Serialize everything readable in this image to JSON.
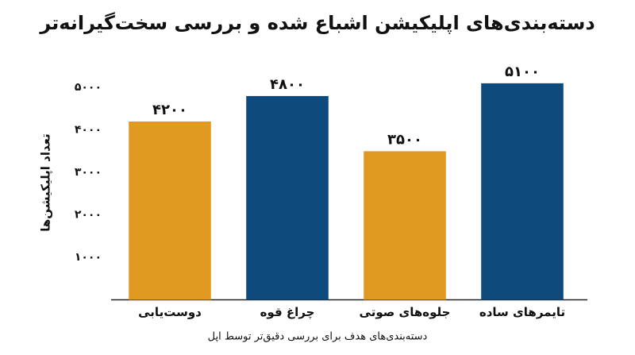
{
  "chart_data": {
    "type": "bar",
    "title": "دسته‌بندی‌های اپلیکیشن اشباع شده و بررسی سخت‌گیرانه‌تر",
    "x_label": "دسته‌بندی‌های هدف برای بررسی دقیق‌تر توسط اپل",
    "y_label": "تعداد اپلیکیشن‌ها",
    "categories": [
      "دوست‌یابی",
      "چراغ قوه",
      "جلوه‌های صوتی",
      "تایمرهای ساده"
    ],
    "values": [
      4200,
      4800,
      3500,
      5100
    ],
    "value_labels": [
      "۴۲۰۰",
      "۴۸۰۰",
      "۳۵۰۰",
      "۵۱۰۰"
    ],
    "colors": [
      "#e09a22",
      "#0f4a7c",
      "#e09a22",
      "#0f4a7c"
    ],
    "ylim": [
      0,
      5500
    ],
    "yticks": [
      {
        "value": 1000,
        "label": "۱۰۰۰"
      },
      {
        "value": 2000,
        "label": "۲۰۰۰"
      },
      {
        "value": 3000,
        "label": "۳۰۰۰"
      },
      {
        "value": 4000,
        "label": "۴۰۰۰"
      },
      {
        "value": 5000,
        "label": "۵۰۰۰"
      }
    ],
    "grid": false
  }
}
